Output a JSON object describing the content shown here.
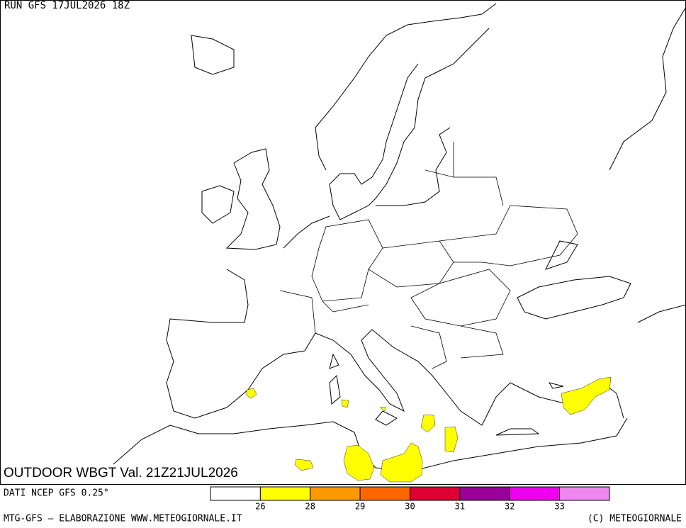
{
  "header": {
    "run": "RUN GFS 17JUL2026 18Z"
  },
  "map": {
    "title": "OUTDOOR WBGT Val. 21Z21JUL2026"
  },
  "legend": {
    "source": "DATI NCEP GFS 0.25°",
    "colors": [
      "#ffffff",
      "#ffff00",
      "#ff9900",
      "#ff6600",
      "#dd0033",
      "#990099",
      "#ee00ee",
      "#ee88ee"
    ],
    "ticks": [
      26,
      28,
      29,
      30,
      31,
      32,
      33
    ]
  },
  "footer": {
    "left": "MTG-GFS — ELABORAZIONE WWW.METEOGIORNALE.IT",
    "right": "(C) METEOGIORNALE"
  }
}
